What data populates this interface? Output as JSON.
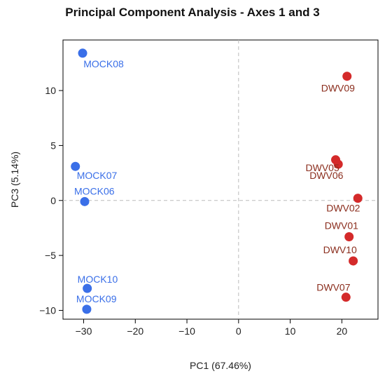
{
  "chart_data": {
    "type": "scatter",
    "title": "Principal Component Analysis - Axes 1 and 3",
    "xlabel": "PC1 (67.46%)",
    "ylabel": "PC3 (5.14%)",
    "xlim": [
      -34,
      27
    ],
    "ylim": [
      -10.8,
      14.6
    ],
    "xticks": [
      -30,
      -20,
      -10,
      0,
      10,
      20
    ],
    "yticks": [
      -10,
      -5,
      0,
      5,
      10
    ],
    "xtick_labels": [
      "−30",
      "−20",
      "−10",
      "0",
      "10",
      "20"
    ],
    "ytick_labels": [
      "−10",
      "−5",
      "0",
      "5",
      "10"
    ],
    "grid": false,
    "reference_lines": {
      "x": 0,
      "y": 0,
      "style": "dashed"
    },
    "series": [
      {
        "color": "#3a6fe8",
        "label_color": "#3a6fe8",
        "points": [
          {
            "label": "MOCK08",
            "x": -30.2,
            "y": 13.4
          },
          {
            "label": "MOCK07",
            "x": -31.6,
            "y": 3.1
          },
          {
            "label": "MOCK06",
            "x": -29.8,
            "y": -0.1
          },
          {
            "label": "MOCK10",
            "x": -29.3,
            "y": -8.0
          },
          {
            "label": "MOCK09",
            "x": -29.4,
            "y": -9.9
          }
        ]
      },
      {
        "color": "#d42a2a",
        "label_color": "#8b2e1e",
        "points": [
          {
            "label": "DWV09",
            "x": 21.0,
            "y": 11.3
          },
          {
            "label": "DWV05",
            "x": 18.8,
            "y": 3.7
          },
          {
            "label": "DWV06",
            "x": 19.3,
            "y": 3.3
          },
          {
            "label": "DWV02",
            "x": 23.1,
            "y": 0.2
          },
          {
            "label": "DWV01",
            "x": 21.4,
            "y": -3.3
          },
          {
            "label": "DWV10",
            "x": 22.2,
            "y": -5.5
          },
          {
            "label": "DWV07",
            "x": 20.8,
            "y": -8.8
          }
        ]
      }
    ]
  }
}
